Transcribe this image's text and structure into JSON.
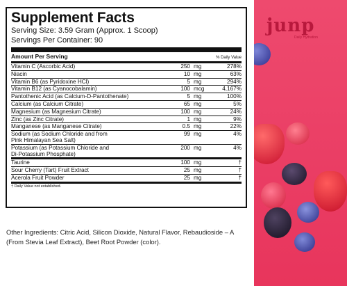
{
  "facts": {
    "title": "Supplement Facts",
    "serving_size": "Serving Size: 3.59 Gram (Approx. 1 Scoop)",
    "servings_per_container": "Servings Per Container: 90",
    "amount_header": "Amount Per Serving",
    "dv_header": "% Daily Value",
    "rows": [
      {
        "name": "Vitamin C (Ascorbic Acid)",
        "amount": "250",
        "unit": "mg",
        "dv": "278%"
      },
      {
        "name": "Niacin",
        "amount": "10",
        "unit": "mg",
        "dv": "63%"
      },
      {
        "name": "Vitamin B6 (as Pyridoxine HCl)",
        "amount": "5",
        "unit": "mg",
        "dv": "294%"
      },
      {
        "name": "Vitamin B12 (as Cyanocobalamin)",
        "amount": "100",
        "unit": "mcg",
        "dv": "4,167%"
      },
      {
        "name": "Pantothenic Acid (as Calcium-D-Pantothenate)",
        "amount": "5",
        "unit": "mg",
        "dv": "100%"
      },
      {
        "name": "Calcium (as Calcium Citrate)",
        "amount": "65",
        "unit": "mg",
        "dv": "5%"
      },
      {
        "name": "Magnesium (as Magnesium Citrate)",
        "amount": "100",
        "unit": "mg",
        "dv": "24%"
      },
      {
        "name": "Zinc (as Zinc Citrate)",
        "amount": "1",
        "unit": "mg",
        "dv": "9%"
      },
      {
        "name": "Manganese (as Manganese Citrate)",
        "amount": "0.5",
        "unit": "mg",
        "dv": "22%"
      },
      {
        "name": "Sodium (as Sodium Chloride and from\nPink Himalayan Sea Salt)",
        "amount": "99",
        "unit": "mg",
        "dv": "4%"
      },
      {
        "name": "Potassium (as Potassium Chloride and\nDi-Potassium Phosphate)",
        "amount": "200",
        "unit": "mg",
        "dv": "4%"
      }
    ],
    "other_rows": [
      {
        "name": "Taurine",
        "amount": "100",
        "unit": "mg",
        "dv": "†"
      },
      {
        "name": "Sour Cherry (Tart) Fruit Extract",
        "amount": "25",
        "unit": "mg",
        "dv": "†"
      },
      {
        "name": "Acerola Fruit Powder",
        "amount": "25",
        "unit": "mg",
        "dv": "†"
      }
    ],
    "footnote": "† Daily Value not established."
  },
  "other_ingredients": "Other Ingredients: Citric Acid, Silicon Dioxide, Natural Flavor, Rebaudioside – A (From Stevia Leaf Extract), Beet Root Powder (color).",
  "brand": {
    "logo": "junp",
    "tagline": "Daily Hydration",
    "panel_color": "#ea3d64",
    "logo_color": "#b8183c"
  }
}
